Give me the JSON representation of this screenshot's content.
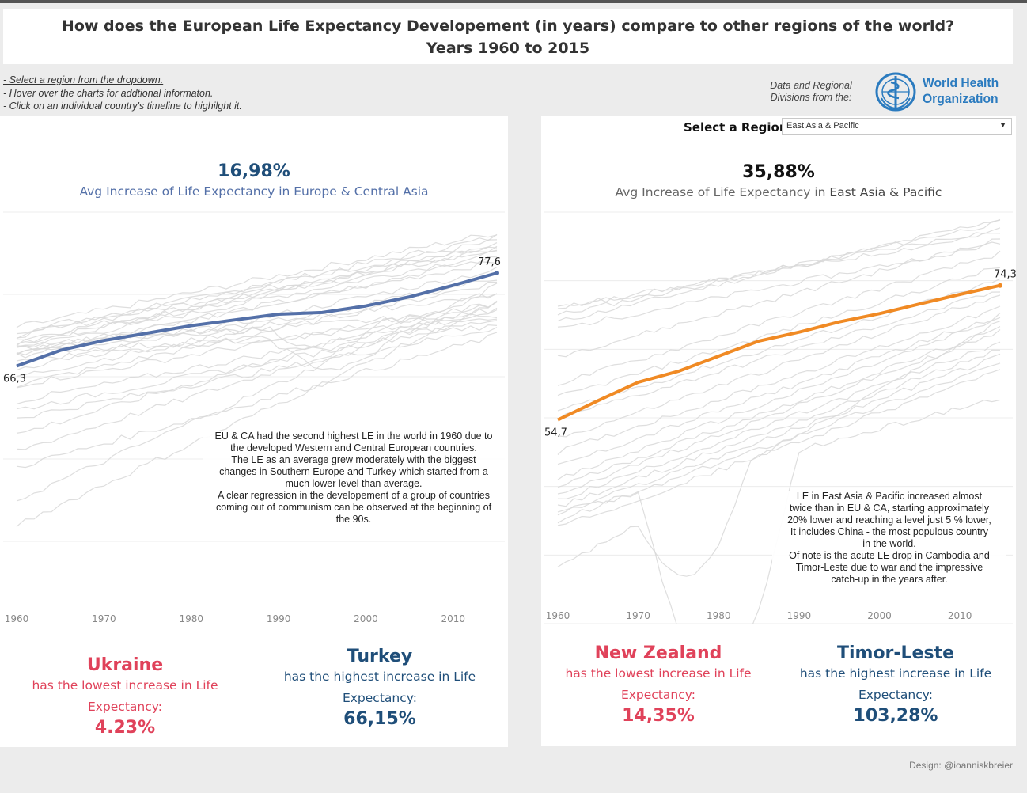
{
  "header": {
    "title_line1": "How does the European Life Expectancy Developement (in years)  compare to other regions of the world?",
    "title_line2": "Years  1960 to 2015"
  },
  "instructions": [
    "- Select a region from the dropdown.",
    "- Hover over the charts for addtional informaton.",
    "- Click on an individual country's timeline to highilght it."
  ],
  "source": {
    "text_line1": "Data and Regional",
    "text_line2": "Divisions from the:",
    "logo_line1": "World Health",
    "logo_line2": "Organization"
  },
  "colors": {
    "europe": "#5470a8",
    "asia": "#f08a24",
    "lowest": "#e0425a",
    "highest": "#1f4e79",
    "background_lines": "#d8d8d8"
  },
  "left_panel": {
    "avg_pct": "16,98%",
    "avg_label": "Avg Increase of  Life Expectancy in Europe & Central Asia",
    "note": [
      "EU & CA had the second highest LE in the world in 1960 due to",
      "the developed Western and Central European countries.",
      "The LE as an average grew moderately with the biggest",
      "changes in Southern Europe  and Turkey which started from a",
      "much lower level than average.",
      "A clear regression in the developement of a group of countries",
      "coming out of communism can be observed at the beginning of",
      "the 90s."
    ],
    "lowest": {
      "country": "Ukraine",
      "desc1": "has the lowest increase in Life",
      "desc2": "Expectancy:",
      "value": "4.23%"
    },
    "highest": {
      "country": "Turkey",
      "desc1": "has the highest increase in Life",
      "desc2": "Expectancy:",
      "value": "66,15%"
    }
  },
  "right_panel": {
    "select_label": "Select a Region",
    "selected_region": "East Asia & Pacific",
    "avg_pct": "35,88%",
    "avg_label_prefix": "Avg Increase of Life Expectancy in ",
    "avg_label_region": "East Asia & Pacific",
    "note": [
      "LE in East Asia & Pacific increased almost",
      "twice than in EU & CA, starting  approximately",
      "20% lower and reaching a level just 5 % lower,",
      "It includes China -  the most populous country",
      "in the world.",
      "Of note is the acute LE drop in Cambodia and",
      "Timor-Leste due to war and the impressive",
      "catch-up in the years after."
    ],
    "lowest": {
      "country": "New Zealand",
      "desc1": "has the lowest increase in Life",
      "desc2": "Expectancy:",
      "value": "14,35%"
    },
    "highest": {
      "country": "Timor-Leste",
      "desc1": "has the highest increase in Life",
      "desc2": "Expectancy:",
      "value": "103,28%"
    }
  },
  "chart_data": [
    {
      "type": "line",
      "x_ticks": [
        "1960",
        "1970",
        "1980",
        "1990",
        "2000",
        "2010"
      ],
      "xlim": [
        1960,
        2015
      ],
      "ylim": [
        35,
        85
      ],
      "grid": "horizontal",
      "series": [
        {
          "name": "Europe & Central Asia",
          "x": [
            1960,
            1965,
            1970,
            1975,
            1980,
            1985,
            1990,
            1995,
            2000,
            2005,
            2010,
            2015
          ],
          "values": [
            66.3,
            68.2,
            69.4,
            70.3,
            71.2,
            71.9,
            72.6,
            72.8,
            73.6,
            74.7,
            76.1,
            77.6
          ]
        }
      ],
      "start_label": "66,3",
      "end_label": "77,6"
    },
    {
      "type": "line",
      "x_ticks": [
        "1960",
        "1970",
        "1980",
        "1990",
        "2000",
        "2010"
      ],
      "xlim": [
        1960,
        2015
      ],
      "ylim": [
        25,
        85
      ],
      "grid": "horizontal",
      "series": [
        {
          "name": "East Asia & Pacific",
          "x": [
            1960,
            1965,
            1970,
            1975,
            1980,
            1985,
            1990,
            1995,
            2000,
            2005,
            2010,
            2015
          ],
          "values": [
            54.7,
            57.5,
            60.2,
            61.8,
            64.0,
            66.2,
            67.5,
            69.0,
            70.2,
            71.6,
            73.0,
            74.3
          ]
        }
      ],
      "start_label": "54,7",
      "end_label": "74,3"
    }
  ],
  "footer": {
    "credit": "Design: @ioanniskbreier"
  }
}
